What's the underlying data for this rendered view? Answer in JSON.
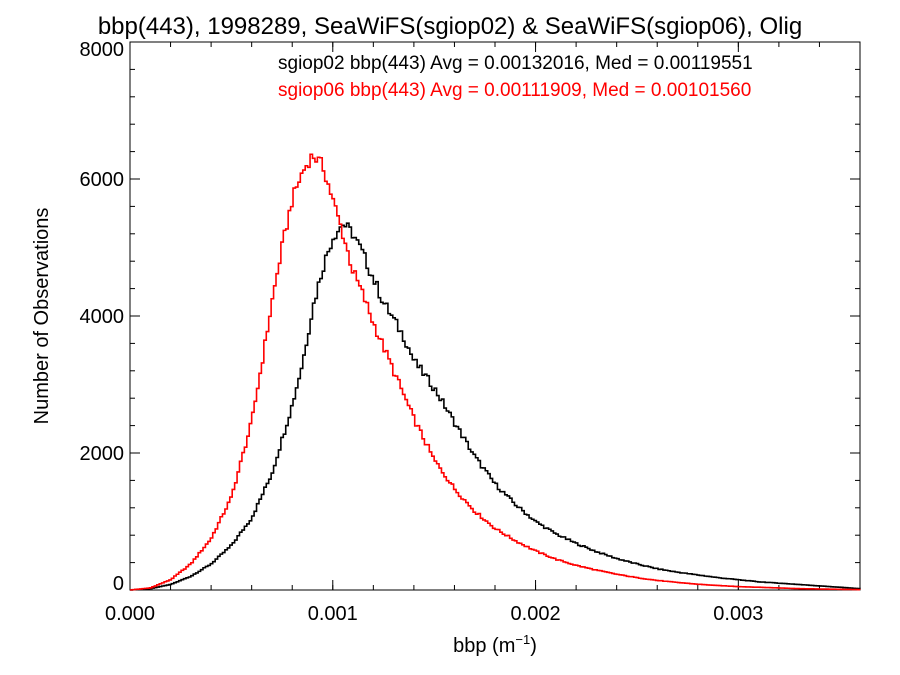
{
  "chart_data": {
    "type": "line",
    "title": "bbp(443), 1998289, SeaWiFS(sgiop02) & SeaWiFS(sgiop06), Olig",
    "xlabel": {
      "base": "bbp (m",
      "sup": "−1",
      "close": ")"
    },
    "ylabel": "Number of Observations",
    "xlim": [
      0.0,
      0.0036
    ],
    "ylim": [
      0,
      8000
    ],
    "xticks": [
      {
        "value": 0.0,
        "label": "0.000"
      },
      {
        "value": 0.001,
        "label": "0.001"
      },
      {
        "value": 0.002,
        "label": "0.002"
      },
      {
        "value": 0.003,
        "label": "0.003"
      }
    ],
    "yticks": [
      {
        "value": 0,
        "label": "0"
      },
      {
        "value": 2000,
        "label": "2000"
      },
      {
        "value": 4000,
        "label": "4000"
      },
      {
        "value": 6000,
        "label": "6000"
      },
      {
        "value": 8000,
        "label": "8000"
      }
    ],
    "grid": false,
    "legend_position": "top-right",
    "series": [
      {
        "name": "sgiop02",
        "color": "#000000",
        "style": "step",
        "stats_text": "sgiop02 bbp(443) Avg = 0.00132016, Med = 0.00119551",
        "x": [
          0.0,
          0.0001,
          0.0002,
          0.0003,
          0.0004,
          0.0005,
          0.0006,
          0.0007,
          0.0008,
          0.00085,
          0.0009,
          0.00095,
          0.001,
          0.00105,
          0.0011,
          0.00115,
          0.0012,
          0.00125,
          0.0013,
          0.00135,
          0.0014,
          0.0015,
          0.0016,
          0.0017,
          0.0018,
          0.0019,
          0.002,
          0.0021,
          0.0022,
          0.0023,
          0.0024,
          0.0025,
          0.0026,
          0.0027,
          0.0028,
          0.0029,
          0.003,
          0.0031,
          0.0032,
          0.0033,
          0.0034,
          0.0035,
          0.0036
        ],
        "y": [
          0,
          20,
          80,
          200,
          380,
          650,
          1050,
          1700,
          2700,
          3300,
          4100,
          4700,
          5150,
          5350,
          5200,
          4900,
          4550,
          4200,
          3950,
          3700,
          3350,
          2950,
          2450,
          1950,
          1550,
          1250,
          1000,
          820,
          680,
          560,
          460,
          380,
          310,
          260,
          220,
          180,
          150,
          120,
          100,
          80,
          60,
          40,
          20
        ]
      },
      {
        "name": "sgiop06",
        "color": "#ff0000",
        "style": "step",
        "stats_text": "sgiop06 bbp(443) Avg = 0.00111909, Med = 0.00101560",
        "x": [
          0.0,
          0.0001,
          0.0002,
          0.0003,
          0.0004,
          0.0005,
          0.0006,
          0.00065,
          0.0007,
          0.00075,
          0.0008,
          0.00085,
          0.0009,
          0.00095,
          0.001,
          0.00105,
          0.0011,
          0.00115,
          0.0012,
          0.0013,
          0.0014,
          0.0015,
          0.0016,
          0.0017,
          0.0018,
          0.0019,
          0.002,
          0.0021,
          0.0022,
          0.0023,
          0.0024,
          0.0025,
          0.0026,
          0.0027,
          0.0028,
          0.0029,
          0.003,
          0.0031,
          0.0032,
          0.0033,
          0.0034,
          0.0035,
          0.0036
        ],
        "y": [
          0,
          30,
          150,
          380,
          750,
          1350,
          2450,
          3300,
          4200,
          5000,
          5700,
          6100,
          6350,
          6200,
          5700,
          5200,
          4650,
          4300,
          3900,
          3200,
          2500,
          1900,
          1480,
          1150,
          900,
          720,
          570,
          450,
          360,
          290,
          230,
          180,
          140,
          110,
          85,
          65,
          50,
          40,
          30,
          20,
          15,
          10,
          5
        ]
      }
    ]
  }
}
